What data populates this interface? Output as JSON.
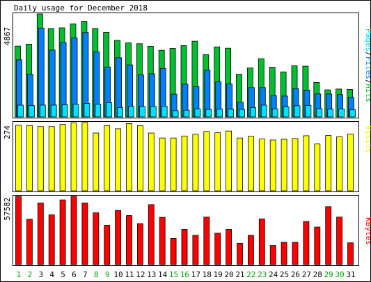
{
  "title": "Daily usage for December 2018",
  "colors": {
    "background": "#ffffff",
    "panel": "#ffffff",
    "hits": "#00c030",
    "files": "#0080ff",
    "pages": "#00e0ff",
    "visits": "#ffff00",
    "kbytes": "#ff0000",
    "weekend_label": "#00a000",
    "weekday_label": "#000000"
  },
  "chart_data": [
    {
      "type": "bar",
      "name_note": "hits/files/pages",
      "y_max_label": "4867",
      "legend": [
        "Pages",
        "Files",
        "Hits"
      ],
      "legend_separator": "/",
      "categories": [
        "1",
        "2",
        "3",
        "4",
        "5",
        "6",
        "7",
        "8",
        "9",
        "10",
        "11",
        "12",
        "13",
        "14",
        "15",
        "16",
        "17",
        "18",
        "19",
        "20",
        "21",
        "22",
        "23",
        "24",
        "25",
        "26",
        "27",
        "28",
        "29",
        "30",
        "31"
      ],
      "weekend_days": [
        "1",
        "2",
        "8",
        "9",
        "15",
        "16",
        "22",
        "23",
        "29",
        "30"
      ],
      "ylim": [
        0,
        4867
      ],
      "series": [
        {
          "name": "Hits",
          "values": [
            3350,
            3440,
            4867,
            4180,
            4210,
            4400,
            4520,
            4180,
            4000,
            3620,
            3500,
            3460,
            3340,
            3150,
            3240,
            3370,
            3580,
            2940,
            3310,
            3250,
            2020,
            2320,
            2750,
            2350,
            2130,
            2420,
            2400,
            1630,
            1280,
            1320,
            1300
          ]
        },
        {
          "name": "Files",
          "values": [
            2700,
            2020,
            4200,
            3160,
            3520,
            3740,
            3990,
            3080,
            2360,
            2800,
            2460,
            1990,
            2040,
            2290,
            1080,
            1550,
            1430,
            2210,
            1660,
            1560,
            700,
            1390,
            1390,
            1010,
            990,
            1340,
            1270,
            1090,
            1090,
            1060,
            930
          ]
        },
        {
          "name": "Pages",
          "values": [
            560,
            540,
            560,
            560,
            580,
            600,
            640,
            600,
            680,
            440,
            510,
            500,
            500,
            510,
            300,
            320,
            380,
            360,
            370,
            370,
            360,
            450,
            560,
            380,
            480,
            530,
            540,
            390,
            370,
            380,
            340
          ]
        }
      ]
    },
    {
      "type": "bar",
      "y_max_label": "274",
      "legend": [
        "Visits"
      ],
      "categories": [
        "1",
        "2",
        "3",
        "4",
        "5",
        "6",
        "7",
        "8",
        "9",
        "10",
        "11",
        "12",
        "13",
        "14",
        "15",
        "16",
        "17",
        "18",
        "19",
        "20",
        "21",
        "22",
        "23",
        "24",
        "25",
        "26",
        "27",
        "28",
        "29",
        "30",
        "31"
      ],
      "ylim": [
        0,
        274
      ],
      "series": [
        {
          "name": "Visits",
          "values": [
            263,
            262,
            258,
            258,
            267,
            273,
            274,
            232,
            262,
            249,
            270,
            262,
            232,
            212,
            212,
            220,
            227,
            238,
            233,
            240,
            212,
            219,
            208,
            204,
            207,
            210,
            221,
            188,
            222,
            217,
            228
          ]
        }
      ]
    },
    {
      "type": "bar",
      "y_max_label": "57582",
      "legend": [
        "KBytes"
      ],
      "categories": [
        "1",
        "2",
        "3",
        "4",
        "5",
        "6",
        "7",
        "8",
        "9",
        "10",
        "11",
        "12",
        "13",
        "14",
        "15",
        "16",
        "17",
        "18",
        "19",
        "20",
        "21",
        "22",
        "23",
        "24",
        "25",
        "26",
        "27",
        "28",
        "29",
        "30",
        "31"
      ],
      "ylim": [
        0,
        57582
      ],
      "series": [
        {
          "name": "KBytes",
          "values": [
            57582,
            38300,
            52000,
            42000,
            54600,
            57582,
            52000,
            43700,
            33200,
            45700,
            41400,
            34600,
            50600,
            39900,
            22100,
            29700,
            24700,
            40100,
            26500,
            29700,
            18000,
            24700,
            38600,
            16100,
            18800,
            18800,
            36400,
            31700,
            48900,
            40100,
            18400
          ]
        }
      ]
    }
  ]
}
